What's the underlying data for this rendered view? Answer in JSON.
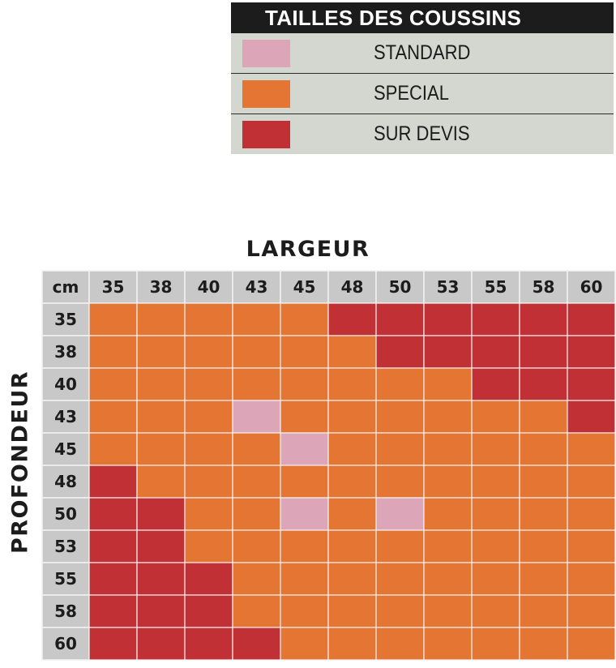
{
  "legend": {
    "title": "TAILLES DES COUSSINS",
    "items": [
      {
        "label": "STANDARD",
        "color": "#dca6b8"
      },
      {
        "label": "SPECIAL",
        "color": "#e47532"
      },
      {
        "label": "SUR DEVIS",
        "color": "#c03034"
      }
    ]
  },
  "chart_data": {
    "type": "heatmap",
    "xlabel": "LARGEUR",
    "ylabel": "PROFONDEUR",
    "corner_label": "cm",
    "x": [
      "35",
      "38",
      "40",
      "43",
      "45",
      "48",
      "50",
      "53",
      "55",
      "58",
      "60"
    ],
    "y": [
      "35",
      "38",
      "40",
      "43",
      "45",
      "48",
      "50",
      "53",
      "55",
      "58",
      "60"
    ],
    "categories": [
      "STANDARD",
      "SPECIAL",
      "SUR DEVIS"
    ],
    "colors": {
      "STANDARD": "#dca6b8",
      "SPECIAL": "#e47532",
      "SUR DEVIS": "#c03034"
    },
    "values": [
      [
        "SPECIAL",
        "SPECIAL",
        "SPECIAL",
        "SPECIAL",
        "SPECIAL",
        "SUR DEVIS",
        "SUR DEVIS",
        "SUR DEVIS",
        "SUR DEVIS",
        "SUR DEVIS",
        "SUR DEVIS"
      ],
      [
        "SPECIAL",
        "SPECIAL",
        "SPECIAL",
        "SPECIAL",
        "SPECIAL",
        "SPECIAL",
        "SUR DEVIS",
        "SUR DEVIS",
        "SUR DEVIS",
        "SUR DEVIS",
        "SUR DEVIS"
      ],
      [
        "SPECIAL",
        "SPECIAL",
        "SPECIAL",
        "SPECIAL",
        "SPECIAL",
        "SPECIAL",
        "SPECIAL",
        "SPECIAL",
        "SUR DEVIS",
        "SUR DEVIS",
        "SUR DEVIS"
      ],
      [
        "SPECIAL",
        "SPECIAL",
        "SPECIAL",
        "STANDARD",
        "SPECIAL",
        "SPECIAL",
        "SPECIAL",
        "SPECIAL",
        "SPECIAL",
        "SPECIAL",
        "SUR DEVIS"
      ],
      [
        "SPECIAL",
        "SPECIAL",
        "SPECIAL",
        "SPECIAL",
        "STANDARD",
        "SPECIAL",
        "SPECIAL",
        "SPECIAL",
        "SPECIAL",
        "SPECIAL",
        "SPECIAL"
      ],
      [
        "SUR DEVIS",
        "SPECIAL",
        "SPECIAL",
        "SPECIAL",
        "SPECIAL",
        "SPECIAL",
        "SPECIAL",
        "SPECIAL",
        "SPECIAL",
        "SPECIAL",
        "SPECIAL"
      ],
      [
        "SUR DEVIS",
        "SUR DEVIS",
        "SPECIAL",
        "SPECIAL",
        "STANDARD",
        "SPECIAL",
        "STANDARD",
        "SPECIAL",
        "SPECIAL",
        "SPECIAL",
        "SPECIAL"
      ],
      [
        "SUR DEVIS",
        "SUR DEVIS",
        "SPECIAL",
        "SPECIAL",
        "SPECIAL",
        "SPECIAL",
        "SPECIAL",
        "SPECIAL",
        "SPECIAL",
        "SPECIAL",
        "SPECIAL"
      ],
      [
        "SUR DEVIS",
        "SUR DEVIS",
        "SUR DEVIS",
        "SPECIAL",
        "SPECIAL",
        "SPECIAL",
        "SPECIAL",
        "SPECIAL",
        "SPECIAL",
        "SPECIAL",
        "SPECIAL"
      ],
      [
        "SUR DEVIS",
        "SUR DEVIS",
        "SUR DEVIS",
        "SPECIAL",
        "SPECIAL",
        "SPECIAL",
        "SPECIAL",
        "SPECIAL",
        "SPECIAL",
        "SPECIAL",
        "SPECIAL"
      ],
      [
        "SUR DEVIS",
        "SUR DEVIS",
        "SUR DEVIS",
        "SUR DEVIS",
        "SPECIAL",
        "SPECIAL",
        "SPECIAL",
        "SPECIAL",
        "SPECIAL",
        "SPECIAL",
        "SPECIAL"
      ]
    ]
  }
}
